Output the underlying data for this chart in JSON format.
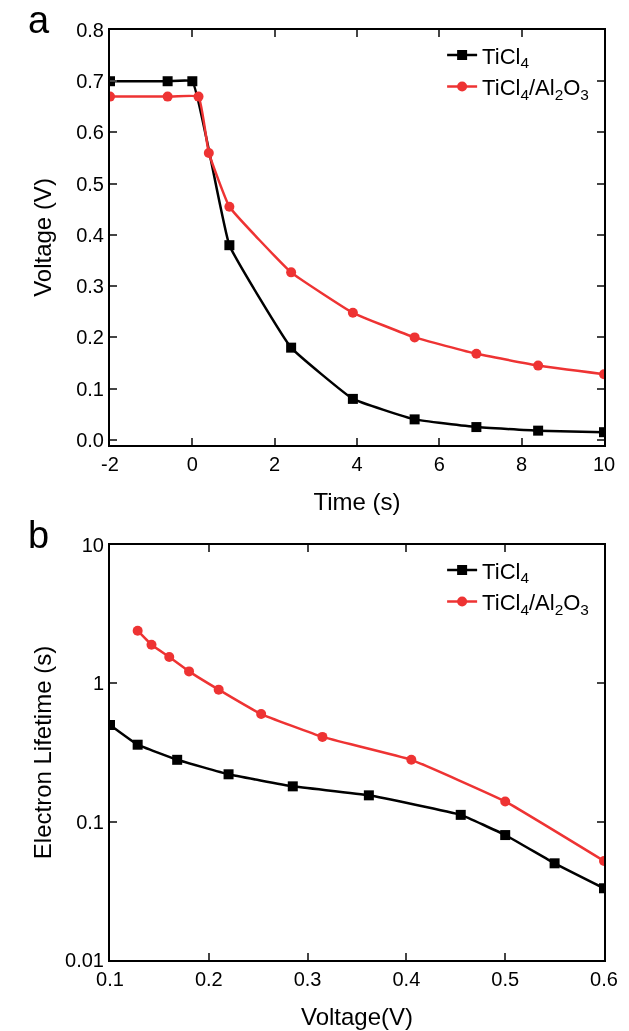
{
  "chart_data": [
    {
      "type": "line",
      "annotations": [
        "a"
      ],
      "xlabel": "Time (s)",
      "ylabel": "Voltage (V)",
      "xlim": [
        -2,
        10
      ],
      "ylim": [
        -0.01,
        0.8
      ],
      "xticks": [
        -2,
        0,
        2,
        4,
        6,
        8,
        10
      ],
      "yticks": [
        {
          "value": 0,
          "label": "0.0"
        },
        0.1,
        0.2,
        0.3,
        0.4,
        0.5,
        0.6,
        0.7,
        0.8
      ],
      "grid": false,
      "legend": "top right",
      "series": [
        {
          "name": "TiCl$_{4}$",
          "color": "#000000",
          "marker": "square",
          "x": [
            -2,
            -0.6,
            0,
            0.9,
            2.4,
            3.9,
            5.4,
            6.9,
            8.4,
            10
          ],
          "values": [
            0.7,
            0.7,
            0.7,
            0.38,
            0.18,
            0.08,
            0.04,
            0.025,
            0.018,
            0.015
          ]
        },
        {
          "name": "TiCl$_{4}$/Al$_{2}$O$_{3}$",
          "color": "#ee3333",
          "marker": "circle",
          "x": [
            -2,
            -0.6,
            0.15,
            0.4,
            0.9,
            2.4,
            3.9,
            5.4,
            6.9,
            8.4,
            10
          ],
          "values": [
            0.67,
            0.67,
            0.67,
            0.56,
            0.455,
            0.327,
            0.248,
            0.2,
            0.168,
            0.145,
            0.128
          ]
        }
      ]
    },
    {
      "type": "line",
      "annotations": [
        "b"
      ],
      "xlabel": "Voltage(V)",
      "ylabel": "Electron Lifetime (s)",
      "log": "y",
      "xlim": [
        0.1,
        0.6
      ],
      "ylim": [
        0.01,
        10
      ],
      "xticks": [
        0.1,
        0.2,
        0.3,
        0.4,
        0.5,
        0.6
      ],
      "yticks": [
        0.01,
        0.1,
        1,
        10
      ],
      "grid": false,
      "legend": "top right",
      "series": [
        {
          "name": "TiCl$_{4}$",
          "color": "#000000",
          "marker": "square",
          "x": [
            0.1,
            0.128,
            0.168,
            0.22,
            0.285,
            0.362,
            0.455,
            0.5,
            0.55,
            0.6
          ],
          "values": [
            0.5,
            0.36,
            0.28,
            0.22,
            0.18,
            0.155,
            0.112,
            0.08,
            0.05,
            0.033
          ]
        },
        {
          "name": "TiCl$_{4}$/Al$_{2}$O$_{3}$",
          "color": "#ee3333",
          "marker": "circle",
          "x": [
            0.128,
            0.142,
            0.16,
            0.18,
            0.21,
            0.253,
            0.315,
            0.405,
            0.5,
            0.6
          ],
          "values": [
            2.4,
            1.9,
            1.55,
            1.22,
            0.9,
            0.6,
            0.41,
            0.28,
            0.14,
            0.052
          ]
        }
      ]
    }
  ]
}
